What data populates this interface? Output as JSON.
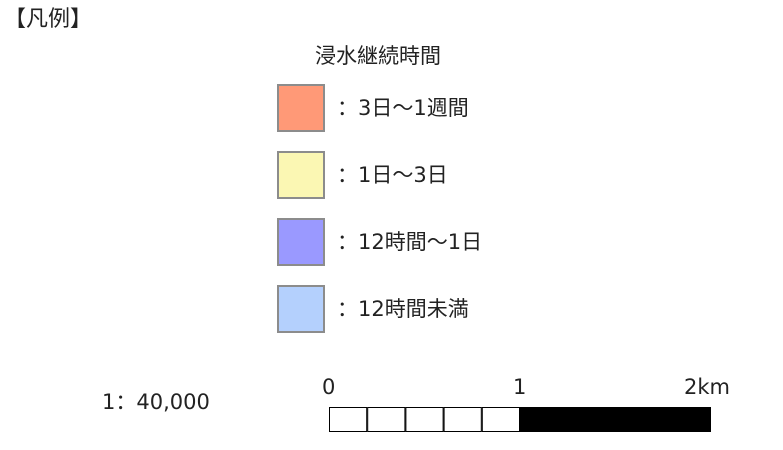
{
  "legend": {
    "heading": "【凡例】",
    "title": "浸水継続時間",
    "items": [
      {
        "label": "：3日～1週間",
        "color": "#ff9977"
      },
      {
        "label": "：1日～3日",
        "color": "#fbf7b3"
      },
      {
        "label": "：12時間～1日",
        "color": "#9a99ff"
      },
      {
        "label": "：12時間未満",
        "color": "#b4d0fd"
      }
    ]
  },
  "scale": {
    "ratio": "1：40,000",
    "ticks": [
      "0",
      "1",
      "2km"
    ],
    "segment_colors": [
      "#ffffff",
      "#ffffff",
      "#ffffff",
      "#ffffff",
      "#ffffff",
      "#000000"
    ]
  }
}
